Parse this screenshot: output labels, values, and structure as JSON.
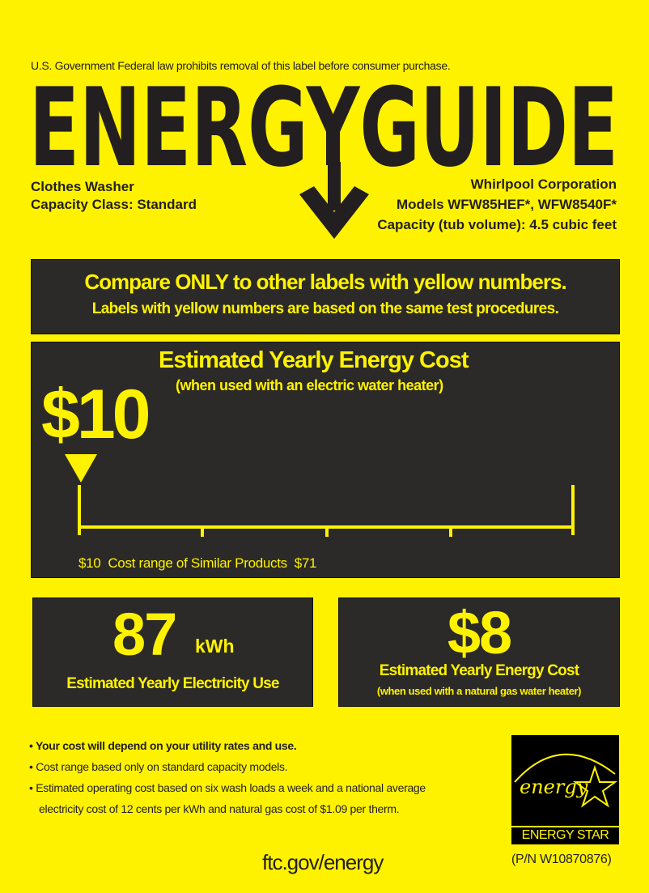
{
  "header": {
    "notice": "U.S. Government  Federal law prohibits removal of this label before consumer purchase.",
    "title": "ENERGYGUIDE",
    "product_type": "Clothes Washer",
    "capacity_class": "Capacity Class: Standard",
    "manufacturer": "Whirlpool Corporation",
    "models": "Models WFW85HEF*, WFW8540F*",
    "capacity": "Capacity (tub volume): 4.5 cubic feet"
  },
  "compare": {
    "headline": "Compare ONLY to other labels with yellow numbers.",
    "subline": "Labels with yellow numbers are based on the same test procedures."
  },
  "cost_electric": {
    "title": "Estimated Yearly Energy Cost",
    "subtitle": "(when used with an electric water heater)",
    "value": "$10",
    "range_low": "$10",
    "range_label": "Cost range of Similar Products",
    "range_high": "$71",
    "range_min_value": 10,
    "range_max_value": 71,
    "marker_value": 10
  },
  "electricity_use": {
    "value": "87",
    "unit": "kWh",
    "label": "Estimated Yearly Electricity Use"
  },
  "cost_gas": {
    "value": "$8",
    "label": "Estimated Yearly Energy Cost",
    "subtitle": "(when used with a natural gas water heater)"
  },
  "notes": [
    "Your cost will depend on your utility rates and use.",
    "Cost range based only on standard capacity models.",
    "Estimated operating cost based on six wash loads a week and a national average",
    "electricity cost of 12 cents per kWh and natural gas cost of $1.09 per therm."
  ],
  "footer": {
    "url": "ftc.gov/energy",
    "part_number": "(P/N W10870876)"
  },
  "energy_star": {
    "script": "energy",
    "label": "ENERGY STAR"
  },
  "colors": {
    "background": "#fff200",
    "panel": "#2b2a28"
  }
}
